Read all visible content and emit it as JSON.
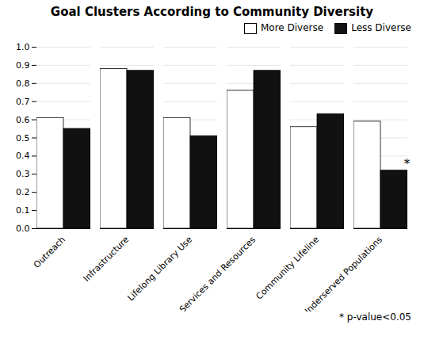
{
  "chart_data": {
    "type": "bar",
    "title": "Goal Clusters According to Community Diversity",
    "categories": [
      "Outreach",
      "Infrastructure",
      "Lifelong Library Use",
      "Services and Resources",
      "Community Lifeline",
      "Underserved Populations"
    ],
    "series": [
      {
        "name": "More Diverse",
        "color": "#ffffff",
        "values": [
          0.61,
          0.88,
          0.61,
          0.76,
          0.56,
          0.59
        ]
      },
      {
        "name": "Less Diverse",
        "color": "#111111",
        "values": [
          0.55,
          0.87,
          0.51,
          0.87,
          0.63,
          0.32
        ]
      }
    ],
    "ylim": [
      0,
      1.0
    ],
    "yticks": [
      {
        "value": 0,
        "label": "0.0"
      },
      0.1,
      0.2,
      0.3,
      0.4,
      0.5,
      0.6,
      0.7,
      0.8,
      0.9,
      {
        "value": 1,
        "label": "1.0"
      }
    ],
    "grid": true,
    "legend": "upper right",
    "annotations": [
      {
        "text": "*",
        "category": "Underserved Populations",
        "series": "Less Diverse"
      },
      {
        "text": "* p-value<0.05"
      }
    ]
  }
}
